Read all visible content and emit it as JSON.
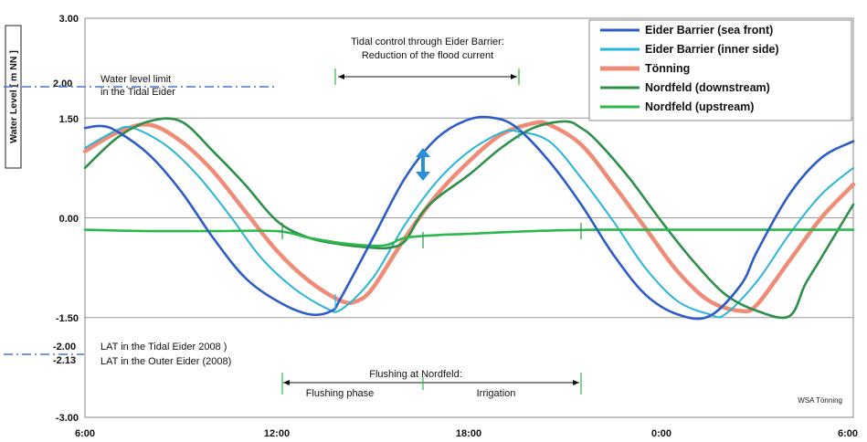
{
  "chart_data": {
    "type": "line",
    "title": "",
    "xlabel": "",
    "ylabel": "Water Level [ m NN ]",
    "x_ticks": [
      "6:00",
      "12:00",
      "18:00",
      "0:00",
      "6:00"
    ],
    "x_range_hours": [
      6,
      30
    ],
    "y_ticks": [
      "3.00",
      "2.00",
      "1.50",
      "0.00",
      "-1.50",
      "-2.00",
      "-2.13",
      "-3.00"
    ],
    "ylim": [
      -3.0,
      3.0
    ],
    "grid": "horizontal",
    "legend_position": "top-right",
    "series": [
      {
        "name": "Eider Barrier (sea front)",
        "color": "#2c5cc5",
        "x_hours": [
          6,
          6.5,
          7,
          8,
          9,
          10,
          11,
          12,
          13,
          13.7,
          14,
          15,
          16,
          17,
          18,
          18.8,
          19.5,
          20.5,
          21.5,
          22.5,
          23.5,
          24.5,
          25.5,
          26.5,
          27,
          28,
          29,
          30
        ],
        "values": [
          1.35,
          1.38,
          1.3,
          0.95,
          0.4,
          -0.3,
          -0.9,
          -1.25,
          -1.45,
          -1.4,
          -1.2,
          -0.3,
          0.6,
          1.2,
          1.48,
          1.5,
          1.35,
          0.85,
          0.2,
          -0.55,
          -1.15,
          -1.45,
          -1.48,
          -1.0,
          -0.5,
          0.35,
          0.9,
          1.15
        ]
      },
      {
        "name": "Eider Barrier (inner side)",
        "color": "#27b5d8",
        "x_hours": [
          6,
          7,
          7.5,
          8.5,
          9.5,
          10.5,
          11.5,
          12.5,
          13.5,
          14,
          15,
          16,
          17,
          18,
          19,
          19.5,
          20.5,
          21.5,
          22.5,
          23.5,
          24.5,
          25.5,
          26,
          27,
          28,
          29,
          30
        ],
        "values": [
          1.05,
          1.32,
          1.35,
          1.1,
          0.65,
          0.05,
          -0.6,
          -1.05,
          -1.35,
          -1.38,
          -0.9,
          -0.1,
          0.55,
          1.0,
          1.28,
          1.3,
          1.15,
          0.6,
          -0.05,
          -0.75,
          -1.25,
          -1.45,
          -1.45,
          -0.95,
          -0.25,
          0.35,
          0.75
        ]
      },
      {
        "name": "Tönning",
        "color": "#ee8c78",
        "x_hours": [
          6,
          7,
          8,
          9,
          10,
          11,
          12,
          13,
          14,
          14.5,
          15,
          16,
          17,
          18,
          19,
          20,
          20.5,
          21.5,
          22.5,
          23.5,
          24.5,
          25.5,
          26.5,
          27,
          28,
          29,
          30
        ],
        "values": [
          1.0,
          1.28,
          1.4,
          1.15,
          0.7,
          0.1,
          -0.5,
          -0.95,
          -1.25,
          -1.25,
          -1.05,
          -0.3,
          0.35,
          0.85,
          1.25,
          1.42,
          1.4,
          1.1,
          0.5,
          -0.15,
          -0.8,
          -1.25,
          -1.4,
          -1.3,
          -0.65,
          0.0,
          0.5
        ]
      },
      {
        "name": "Nordfeld (downstream)",
        "color": "#2e9048",
        "x_hours": [
          6,
          7,
          8,
          9,
          10,
          11,
          12,
          13,
          14,
          15,
          15.5,
          16,
          16.5,
          17,
          18,
          19,
          20,
          21,
          21.5,
          22,
          23,
          24,
          25,
          26,
          27,
          28,
          28.5,
          29,
          30
        ],
        "values": [
          0.75,
          1.2,
          1.45,
          1.45,
          1.0,
          0.5,
          -0.05,
          -0.3,
          -0.4,
          -0.45,
          -0.45,
          -0.35,
          0.05,
          0.3,
          0.65,
          1.05,
          1.35,
          1.45,
          1.35,
          1.15,
          0.6,
          -0.05,
          -0.65,
          -1.15,
          -1.4,
          -1.48,
          -1.0,
          -0.6,
          0.2
        ]
      },
      {
        "name": "Nordfeld (upstream)",
        "color": "#2db84e",
        "x_hours": [
          6,
          8,
          10,
          12,
          13,
          14,
          15,
          15.5,
          16,
          17,
          18,
          20,
          22,
          24,
          26,
          28,
          30
        ],
        "values": [
          -0.18,
          -0.2,
          -0.2,
          -0.2,
          -0.3,
          -0.38,
          -0.42,
          -0.4,
          -0.3,
          -0.26,
          -0.24,
          -0.2,
          -0.18,
          -0.18,
          -0.18,
          -0.18,
          -0.18
        ]
      }
    ],
    "annotations": {
      "tidal_control_line1": "Tidal control through Eider Barrier:",
      "tidal_control_line2": "Reduction of the flood current",
      "water_limit_line1": "Water level limit",
      "water_limit_line2": "in the Tidal Eider",
      "lat_tidal": "LAT  in the Tidal Eider 2008 )",
      "lat_outer": "LAT  in the Outer Eider (2008)",
      "flushing_title": "Flushing at Nordfeld:",
      "flushing_phase": "Flushing phase",
      "irrigation": "Irrigation",
      "credit": "WSA Tönning"
    }
  }
}
